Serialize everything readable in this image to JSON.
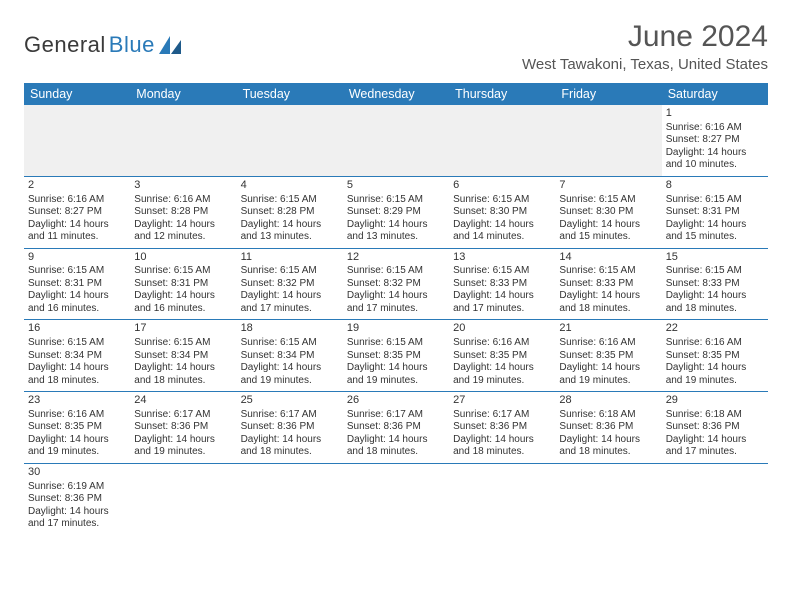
{
  "logo": {
    "text1": "General",
    "text2": "Blue"
  },
  "title": "June 2024",
  "location": "West Tawakoni, Texas, United States",
  "colors": {
    "header_bg": "#2a7ab8",
    "header_text": "#ffffff",
    "blank_bg": "#f0f0f0",
    "border": "#2a7ab8",
    "text": "#333333",
    "logo_gray": "#3a3a3a",
    "logo_blue": "#2a7ab8"
  },
  "weekdays": [
    "Sunday",
    "Monday",
    "Tuesday",
    "Wednesday",
    "Thursday",
    "Friday",
    "Saturday"
  ],
  "leading_blanks": 6,
  "days": [
    {
      "n": "1",
      "sr": "6:16 AM",
      "ss": "8:27 PM",
      "dl": "14 hours and 10 minutes."
    },
    {
      "n": "2",
      "sr": "6:16 AM",
      "ss": "8:27 PM",
      "dl": "14 hours and 11 minutes."
    },
    {
      "n": "3",
      "sr": "6:16 AM",
      "ss": "8:28 PM",
      "dl": "14 hours and 12 minutes."
    },
    {
      "n": "4",
      "sr": "6:15 AM",
      "ss": "8:28 PM",
      "dl": "14 hours and 13 minutes."
    },
    {
      "n": "5",
      "sr": "6:15 AM",
      "ss": "8:29 PM",
      "dl": "14 hours and 13 minutes."
    },
    {
      "n": "6",
      "sr": "6:15 AM",
      "ss": "8:30 PM",
      "dl": "14 hours and 14 minutes."
    },
    {
      "n": "7",
      "sr": "6:15 AM",
      "ss": "8:30 PM",
      "dl": "14 hours and 15 minutes."
    },
    {
      "n": "8",
      "sr": "6:15 AM",
      "ss": "8:31 PM",
      "dl": "14 hours and 15 minutes."
    },
    {
      "n": "9",
      "sr": "6:15 AM",
      "ss": "8:31 PM",
      "dl": "14 hours and 16 minutes."
    },
    {
      "n": "10",
      "sr": "6:15 AM",
      "ss": "8:31 PM",
      "dl": "14 hours and 16 minutes."
    },
    {
      "n": "11",
      "sr": "6:15 AM",
      "ss": "8:32 PM",
      "dl": "14 hours and 17 minutes."
    },
    {
      "n": "12",
      "sr": "6:15 AM",
      "ss": "8:32 PM",
      "dl": "14 hours and 17 minutes."
    },
    {
      "n": "13",
      "sr": "6:15 AM",
      "ss": "8:33 PM",
      "dl": "14 hours and 17 minutes."
    },
    {
      "n": "14",
      "sr": "6:15 AM",
      "ss": "8:33 PM",
      "dl": "14 hours and 18 minutes."
    },
    {
      "n": "15",
      "sr": "6:15 AM",
      "ss": "8:33 PM",
      "dl": "14 hours and 18 minutes."
    },
    {
      "n": "16",
      "sr": "6:15 AM",
      "ss": "8:34 PM",
      "dl": "14 hours and 18 minutes."
    },
    {
      "n": "17",
      "sr": "6:15 AM",
      "ss": "8:34 PM",
      "dl": "14 hours and 18 minutes."
    },
    {
      "n": "18",
      "sr": "6:15 AM",
      "ss": "8:34 PM",
      "dl": "14 hours and 19 minutes."
    },
    {
      "n": "19",
      "sr": "6:15 AM",
      "ss": "8:35 PM",
      "dl": "14 hours and 19 minutes."
    },
    {
      "n": "20",
      "sr": "6:16 AM",
      "ss": "8:35 PM",
      "dl": "14 hours and 19 minutes."
    },
    {
      "n": "21",
      "sr": "6:16 AM",
      "ss": "8:35 PM",
      "dl": "14 hours and 19 minutes."
    },
    {
      "n": "22",
      "sr": "6:16 AM",
      "ss": "8:35 PM",
      "dl": "14 hours and 19 minutes."
    },
    {
      "n": "23",
      "sr": "6:16 AM",
      "ss": "8:35 PM",
      "dl": "14 hours and 19 minutes."
    },
    {
      "n": "24",
      "sr": "6:17 AM",
      "ss": "8:36 PM",
      "dl": "14 hours and 19 minutes."
    },
    {
      "n": "25",
      "sr": "6:17 AM",
      "ss": "8:36 PM",
      "dl": "14 hours and 18 minutes."
    },
    {
      "n": "26",
      "sr": "6:17 AM",
      "ss": "8:36 PM",
      "dl": "14 hours and 18 minutes."
    },
    {
      "n": "27",
      "sr": "6:17 AM",
      "ss": "8:36 PM",
      "dl": "14 hours and 18 minutes."
    },
    {
      "n": "28",
      "sr": "6:18 AM",
      "ss": "8:36 PM",
      "dl": "14 hours and 18 minutes."
    },
    {
      "n": "29",
      "sr": "6:18 AM",
      "ss": "8:36 PM",
      "dl": "14 hours and 17 minutes."
    },
    {
      "n": "30",
      "sr": "6:19 AM",
      "ss": "8:36 PM",
      "dl": "14 hours and 17 minutes."
    }
  ],
  "labels": {
    "sunrise": "Sunrise: ",
    "sunset": "Sunset: ",
    "daylight": "Daylight: "
  }
}
